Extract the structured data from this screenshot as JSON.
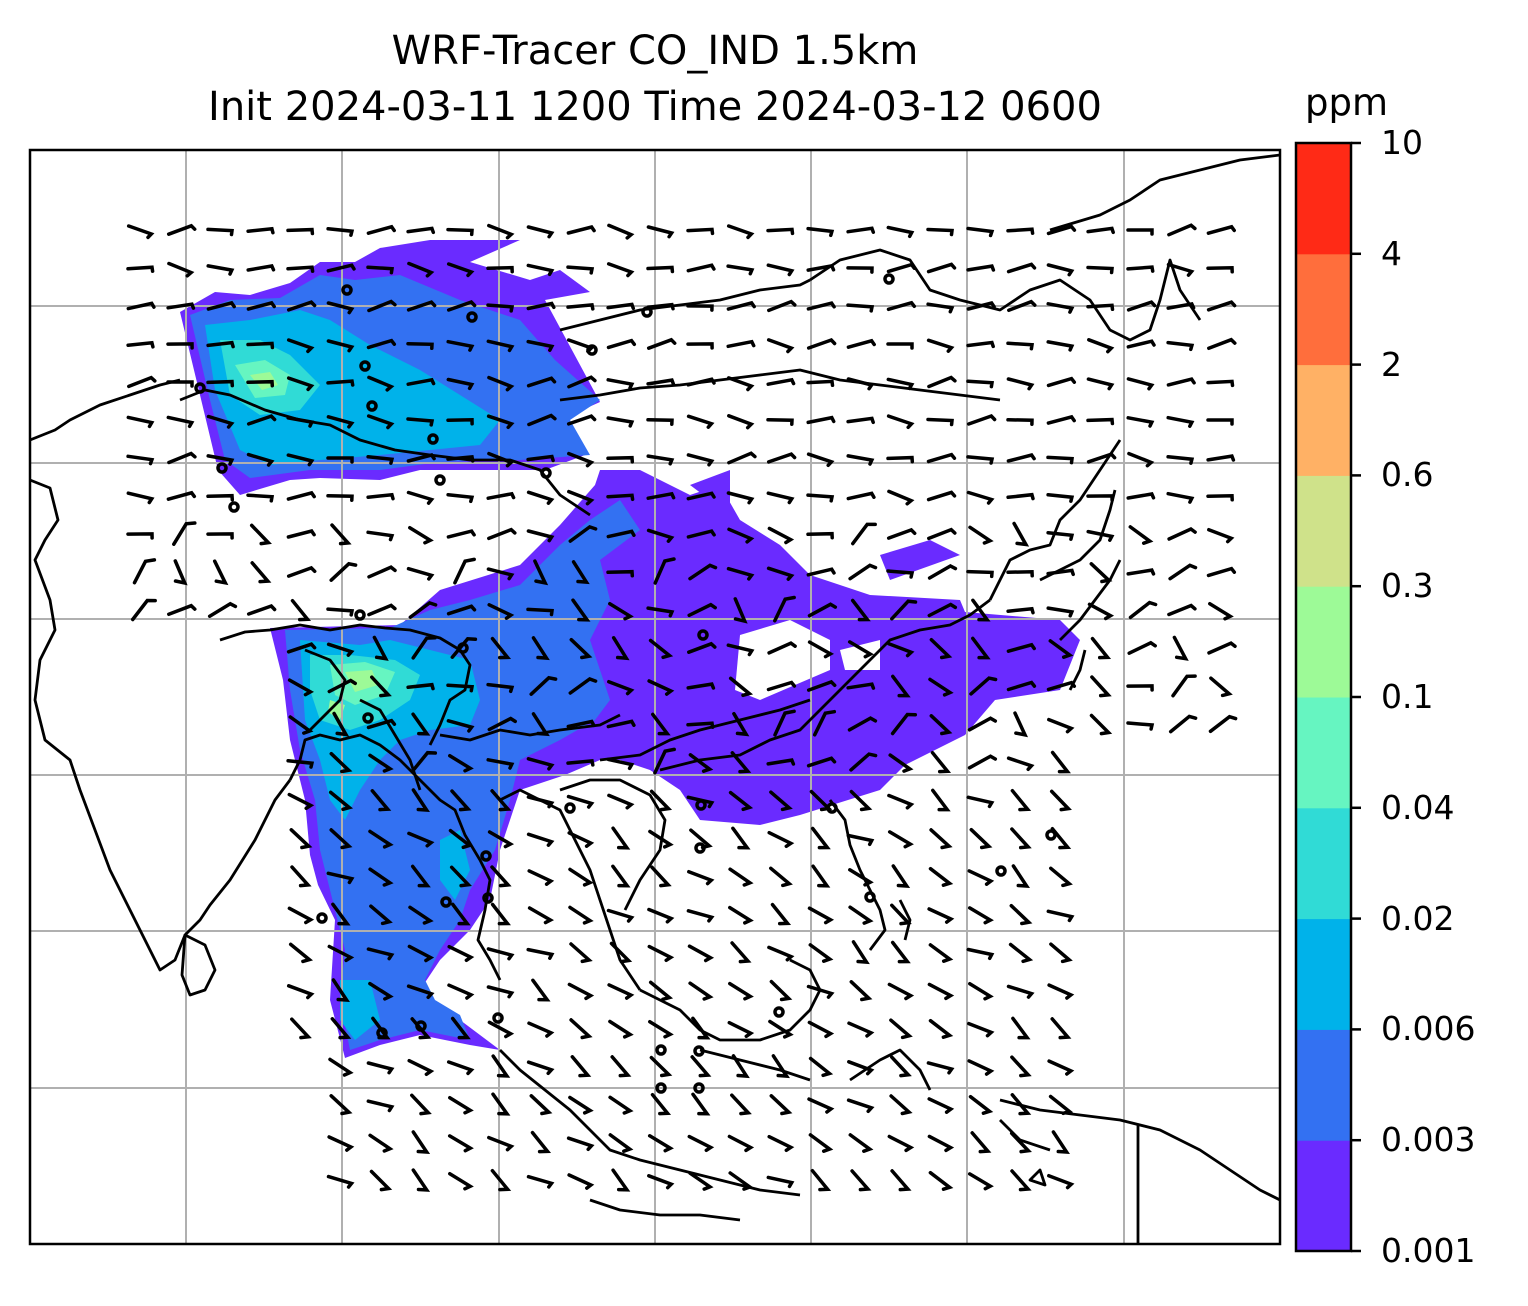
{
  "title": {
    "line1": "WRF-Tracer CO_IND 1.5km",
    "line2": "Init 2024-03-11 1200 Time 2024-03-12 0600"
  },
  "colorbar": {
    "units": "ppm",
    "ticks": [
      "0.001",
      "0.003",
      "0.006",
      "0.02",
      "0.04",
      "0.1",
      "0.3",
      "0.6",
      "2",
      "4",
      "10"
    ],
    "colors": [
      "#6a2bff",
      "#3371f2",
      "#00b2ea",
      "#30dbd6",
      "#66f5c1",
      "#9dfa97",
      "#cfe28a",
      "#ffb165",
      "#ff6e3c",
      "#ff2a16"
    ]
  },
  "map": {
    "background": "#ffffff",
    "coastline_color": "#000000",
    "grid_color": "#b0b0b0",
    "layers": [
      "tracer-concentration",
      "coastlines",
      "country-borders",
      "gridlines",
      "wind-barbs"
    ]
  }
}
